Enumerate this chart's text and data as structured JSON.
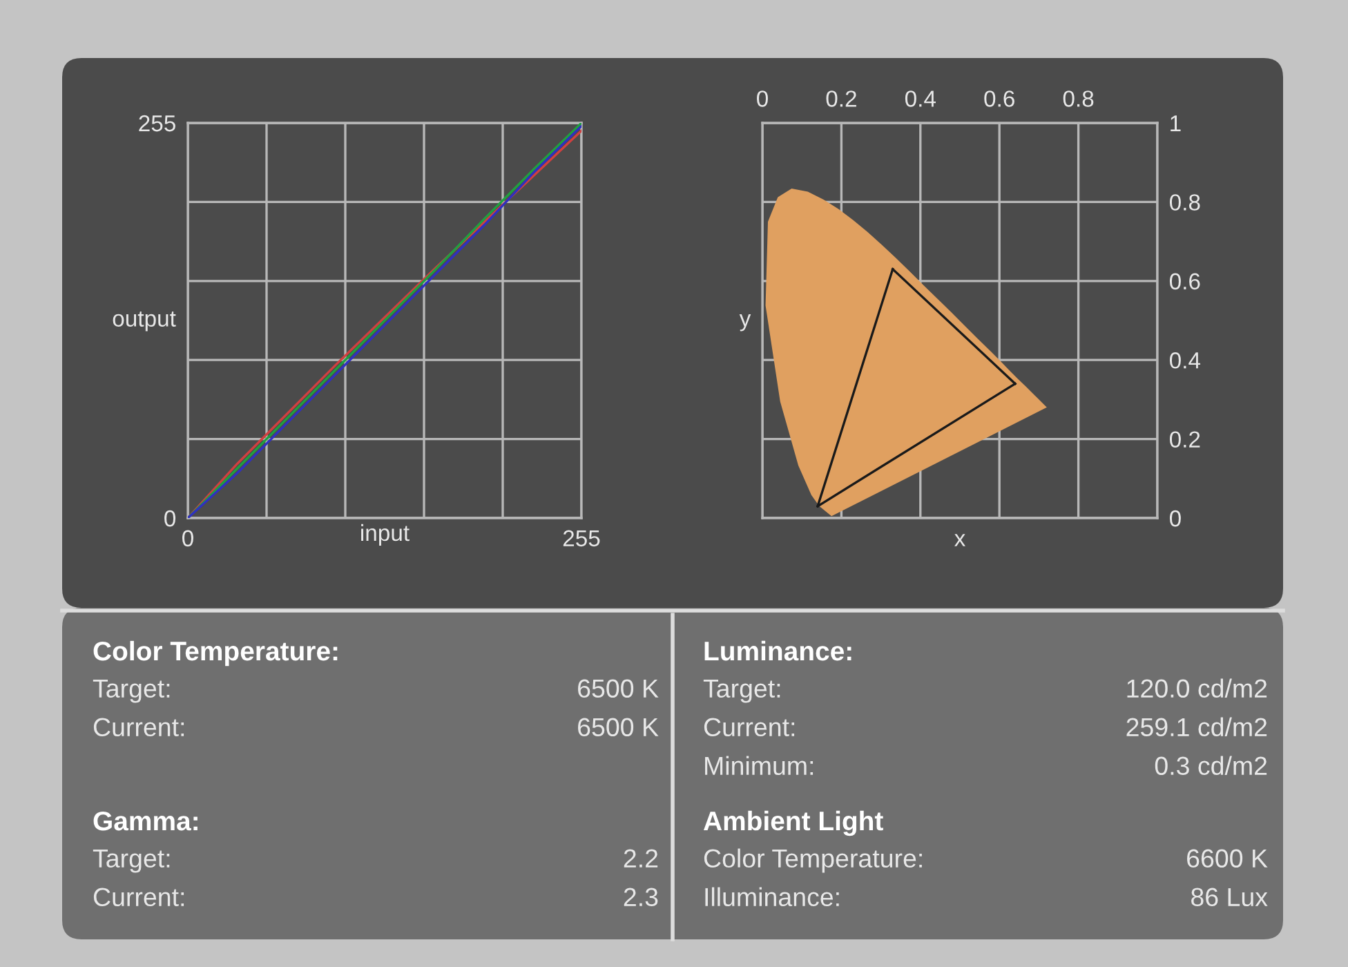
{
  "chart_data": [
    {
      "type": "line",
      "xlabel": "input",
      "ylabel": "output",
      "xlim": [
        0,
        255
      ],
      "ylim": [
        0,
        255
      ],
      "xticks": [
        0,
        {
          "value": 51,
          "label": null
        },
        {
          "value": 102,
          "label": null
        },
        {
          "value": 153,
          "label": null
        },
        {
          "value": 204,
          "label": null
        },
        255
      ],
      "yticks": [
        0,
        {
          "value": 51,
          "label": null
        },
        {
          "value": 102,
          "label": null
        },
        {
          "value": 153,
          "label": null
        },
        {
          "value": 204,
          "label": null
        },
        255
      ],
      "grid": true,
      "marker": "none",
      "line_style": "solid",
      "x": [
        0,
        32,
        64,
        96,
        128,
        160,
        192,
        224,
        255
      ],
      "series": [
        {
          "color": "#d04040",
          "values": [
            0,
            35,
            67,
            99,
            130,
            161,
            191,
            221,
            250
          ]
        },
        {
          "color": "#20a040",
          "values": [
            0,
            32,
            64,
            96,
            128,
            160,
            193,
            225,
            255
          ]
        },
        {
          "color": "#3030c0",
          "values": [
            0,
            29,
            61,
            93,
            125,
            157,
            189,
            223,
            253
          ]
        }
      ]
    },
    {
      "type": "line",
      "xlabel": "x",
      "ylabel": "y",
      "xlim": [
        0,
        1
      ],
      "ylim": [
        0,
        1
      ],
      "xticks": [
        0,
        0.2,
        0.4,
        0.6,
        0.8,
        {
          "value": 1,
          "label": null
        }
      ],
      "yticks": [
        0,
        0.2,
        0.4,
        0.6,
        0.8,
        1
      ],
      "grid": true,
      "marker": "none",
      "line_style": "solid",
      "series": [
        {
          "type": "area",
          "color": "#e0a060",
          "x": [
            0.175,
            0.144,
            0.124,
            0.091,
            0.045,
            0.008,
            0.014,
            0.039,
            0.074,
            0.115,
            0.155,
            0.193,
            0.23,
            0.266,
            0.302,
            0.337,
            0.373,
            0.408,
            0.444,
            0.479,
            0.512,
            0.544,
            0.575,
            0.603,
            0.627,
            0.648,
            0.666,
            0.68,
            0.691,
            0.72,
            0.175
          ],
          "values": [
            0.005,
            0.03,
            0.058,
            0.133,
            0.295,
            0.538,
            0.75,
            0.812,
            0.834,
            0.826,
            0.806,
            0.782,
            0.754,
            0.724,
            0.692,
            0.659,
            0.624,
            0.589,
            0.554,
            0.52,
            0.487,
            0.455,
            0.425,
            0.397,
            0.372,
            0.351,
            0.334,
            0.32,
            0.309,
            0.28,
            0.005
          ]
        },
        {
          "type": "line",
          "color": "#1a1a1a",
          "x": [
            0.14,
            0.33
          ],
          "values": [
            0.03,
            0.63
          ]
        },
        {
          "type": "line",
          "color": "#1a1a1a",
          "x": [
            0.33,
            0.64
          ],
          "values": [
            0.63,
            0.34
          ]
        },
        {
          "type": "line",
          "color": "#1a1a1a",
          "x": [
            0.14,
            0.64
          ],
          "values": [
            0.03,
            0.34
          ]
        }
      ]
    },
    {
      "type": "other",
      "title": "Color Temperature:",
      "annotations": [
        "Target:",
        "6500 K",
        "Current:",
        "6500 K"
      ]
    },
    {
      "type": "other",
      "title": "Gamma:",
      "annotations": [
        "Target:",
        "2.2",
        "Current:",
        "2.3"
      ]
    },
    {
      "type": "other",
      "title": "Luminance:",
      "annotations": [
        "Target:",
        "120.0 cd/m2",
        "Current:",
        "259.1 cd/m2",
        "Minimum:",
        "0.3 cd/m2"
      ]
    },
    {
      "type": "other",
      "title": "Ambient Light",
      "annotations": [
        "Color Temperature:",
        "6600 K",
        "Illuminance:",
        "86 Lux"
      ]
    }
  ]
}
